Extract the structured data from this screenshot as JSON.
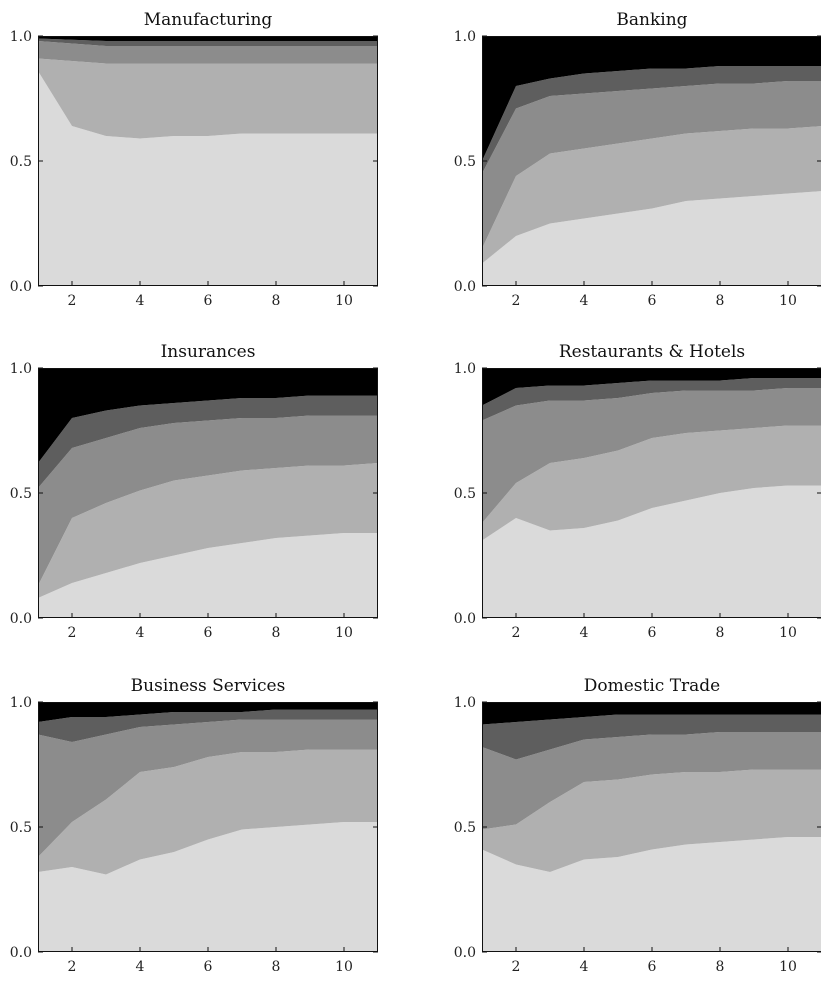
{
  "colors": {
    "band_1": "#dadada",
    "band_2": "#b0b0b0",
    "band_3": "#8c8c8c",
    "band_4": "#5e5e5e",
    "band_5": "#000000"
  },
  "chart_data": [
    {
      "type": "area",
      "stacked": true,
      "title": "Manufacturing",
      "x": [
        1,
        2,
        3,
        4,
        5,
        6,
        7,
        8,
        9,
        10,
        11
      ],
      "xticks": [
        2,
        4,
        6,
        8,
        10
      ],
      "xlim": [
        1,
        11
      ],
      "yticks": [
        0.0,
        0.5,
        1.0
      ],
      "ytick_labels": [
        "0.0",
        "0.5",
        "1.0"
      ],
      "ylim": [
        0,
        1
      ],
      "cumulative": [
        [
          0.86,
          0.64,
          0.6,
          0.59,
          0.6,
          0.6,
          0.61,
          0.61,
          0.61,
          0.61,
          0.61
        ],
        [
          0.91,
          0.9,
          0.89,
          0.89,
          0.89,
          0.89,
          0.89,
          0.89,
          0.89,
          0.89,
          0.89
        ],
        [
          0.98,
          0.97,
          0.96,
          0.96,
          0.96,
          0.96,
          0.96,
          0.96,
          0.96,
          0.96,
          0.96
        ],
        [
          0.99,
          0.985,
          0.98,
          0.98,
          0.98,
          0.98,
          0.98,
          0.98,
          0.98,
          0.98,
          0.98
        ],
        [
          1,
          1,
          1,
          1,
          1,
          1,
          1,
          1,
          1,
          1,
          1
        ]
      ]
    },
    {
      "type": "area",
      "stacked": true,
      "title": "Banking",
      "x": [
        1,
        2,
        3,
        4,
        5,
        6,
        7,
        8,
        9,
        10,
        11
      ],
      "xticks": [
        2,
        4,
        6,
        8,
        10
      ],
      "xlim": [
        1,
        11
      ],
      "yticks": [
        0.0,
        0.5,
        1.0
      ],
      "ytick_labels": [
        "0.0",
        "0.5",
        "1.0"
      ],
      "ylim": [
        0,
        1
      ],
      "cumulative": [
        [
          0.09,
          0.2,
          0.25,
          0.27,
          0.29,
          0.31,
          0.34,
          0.35,
          0.36,
          0.37,
          0.38
        ],
        [
          0.15,
          0.44,
          0.53,
          0.55,
          0.57,
          0.59,
          0.61,
          0.62,
          0.63,
          0.63,
          0.64
        ],
        [
          0.45,
          0.71,
          0.76,
          0.77,
          0.78,
          0.79,
          0.8,
          0.81,
          0.81,
          0.82,
          0.82
        ],
        [
          0.5,
          0.8,
          0.83,
          0.85,
          0.86,
          0.87,
          0.87,
          0.88,
          0.88,
          0.88,
          0.88
        ],
        [
          1,
          1,
          1,
          1,
          1,
          1,
          1,
          1,
          1,
          1,
          1
        ]
      ]
    },
    {
      "type": "area",
      "stacked": true,
      "title": "Insurances",
      "x": [
        1,
        2,
        3,
        4,
        5,
        6,
        7,
        8,
        9,
        10,
        11
      ],
      "xticks": [
        2,
        4,
        6,
        8,
        10
      ],
      "xlim": [
        1,
        11
      ],
      "yticks": [
        0.0,
        0.5,
        1.0
      ],
      "ytick_labels": [
        "0.0",
        "0.5",
        "1.0"
      ],
      "ylim": [
        0,
        1
      ],
      "cumulative": [
        [
          0.08,
          0.14,
          0.18,
          0.22,
          0.25,
          0.28,
          0.3,
          0.32,
          0.33,
          0.34,
          0.34
        ],
        [
          0.13,
          0.4,
          0.46,
          0.51,
          0.55,
          0.57,
          0.59,
          0.6,
          0.61,
          0.61,
          0.62
        ],
        [
          0.52,
          0.68,
          0.72,
          0.76,
          0.78,
          0.79,
          0.8,
          0.8,
          0.81,
          0.81,
          0.81
        ],
        [
          0.62,
          0.8,
          0.83,
          0.85,
          0.86,
          0.87,
          0.88,
          0.88,
          0.89,
          0.89,
          0.89
        ],
        [
          1,
          1,
          1,
          1,
          1,
          1,
          1,
          1,
          1,
          1,
          1
        ]
      ]
    },
    {
      "type": "area",
      "stacked": true,
      "title": "Restaurants & Hotels",
      "x": [
        1,
        2,
        3,
        4,
        5,
        6,
        7,
        8,
        9,
        10,
        11
      ],
      "xticks": [
        2,
        4,
        6,
        8,
        10
      ],
      "xlim": [
        1,
        11
      ],
      "yticks": [
        0.0,
        0.5,
        1.0
      ],
      "ytick_labels": [
        "0.0",
        "0.5",
        "1.0"
      ],
      "ylim": [
        0,
        1
      ],
      "cumulative": [
        [
          0.31,
          0.4,
          0.35,
          0.36,
          0.39,
          0.44,
          0.47,
          0.5,
          0.52,
          0.53,
          0.53
        ],
        [
          0.38,
          0.54,
          0.62,
          0.64,
          0.67,
          0.72,
          0.74,
          0.75,
          0.76,
          0.77,
          0.77
        ],
        [
          0.79,
          0.85,
          0.87,
          0.87,
          0.88,
          0.9,
          0.91,
          0.91,
          0.91,
          0.92,
          0.92
        ],
        [
          0.85,
          0.92,
          0.93,
          0.93,
          0.94,
          0.95,
          0.95,
          0.95,
          0.96,
          0.96,
          0.96
        ],
        [
          1,
          1,
          1,
          1,
          1,
          1,
          1,
          1,
          1,
          1,
          1
        ]
      ]
    },
    {
      "type": "area",
      "stacked": true,
      "title": "Business Services",
      "x": [
        1,
        2,
        3,
        4,
        5,
        6,
        7,
        8,
        9,
        10,
        11
      ],
      "xticks": [
        2,
        4,
        6,
        8,
        10
      ],
      "xlim": [
        1,
        11
      ],
      "yticks": [
        0.0,
        0.5,
        1.0
      ],
      "ytick_labels": [
        "0.0",
        "0.5",
        "1.0"
      ],
      "ylim": [
        0,
        1
      ],
      "cumulative": [
        [
          0.32,
          0.34,
          0.31,
          0.37,
          0.4,
          0.45,
          0.49,
          0.5,
          0.51,
          0.52,
          0.52
        ],
        [
          0.38,
          0.52,
          0.61,
          0.72,
          0.74,
          0.78,
          0.8,
          0.8,
          0.81,
          0.81,
          0.81
        ],
        [
          0.87,
          0.84,
          0.87,
          0.9,
          0.91,
          0.92,
          0.93,
          0.93,
          0.93,
          0.93,
          0.93
        ],
        [
          0.92,
          0.94,
          0.94,
          0.95,
          0.96,
          0.96,
          0.96,
          0.97,
          0.97,
          0.97,
          0.97
        ],
        [
          1,
          1,
          1,
          1,
          1,
          1,
          1,
          1,
          1,
          1,
          1
        ]
      ]
    },
    {
      "type": "area",
      "stacked": true,
      "title": "Domestic Trade",
      "x": [
        1,
        2,
        3,
        4,
        5,
        6,
        7,
        8,
        9,
        10,
        11
      ],
      "xticks": [
        2,
        4,
        6,
        8,
        10
      ],
      "xlim": [
        1,
        11
      ],
      "yticks": [
        0.0,
        0.5,
        1.0
      ],
      "ytick_labels": [
        "0.0",
        "0.5",
        "1.0"
      ],
      "ylim": [
        0,
        1
      ],
      "cumulative": [
        [
          0.41,
          0.35,
          0.32,
          0.37,
          0.38,
          0.41,
          0.43,
          0.44,
          0.45,
          0.46,
          0.46
        ],
        [
          0.49,
          0.51,
          0.6,
          0.68,
          0.69,
          0.71,
          0.72,
          0.72,
          0.73,
          0.73,
          0.73
        ],
        [
          0.82,
          0.77,
          0.81,
          0.85,
          0.86,
          0.87,
          0.87,
          0.88,
          0.88,
          0.88,
          0.88
        ],
        [
          0.91,
          0.92,
          0.93,
          0.94,
          0.95,
          0.95,
          0.95,
          0.95,
          0.95,
          0.95,
          0.95
        ],
        [
          1,
          1,
          1,
          1,
          1,
          1,
          1,
          1,
          1,
          1,
          1
        ]
      ]
    }
  ]
}
